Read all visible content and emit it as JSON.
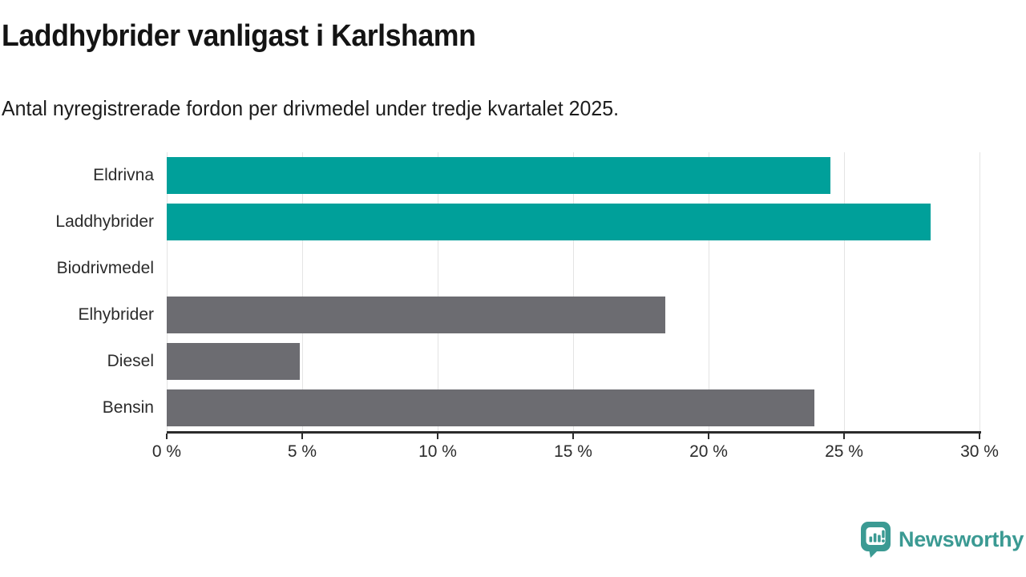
{
  "header": {
    "title": "Laddhybrider vanligast i Karlshamn",
    "subtitle": "Antal nyregistrerade fordon per drivmedel under tredje kvartalet 2025."
  },
  "colors": {
    "teal": "#00a09a",
    "gray": "#6c6c71",
    "grid": "#e4e4e4",
    "axis": "#2b2b2b",
    "logo_teal": "#3b9a93"
  },
  "chart_data": {
    "type": "bar",
    "orientation": "horizontal",
    "title": "Laddhybrider vanligast i Karlshamn",
    "subtitle": "Antal nyregistrerade fordon per drivmedel under tredje kvartalet 2025.",
    "categories": [
      "Eldrivna",
      "Laddhybrider",
      "Biodrivmedel",
      "Elhybrider",
      "Diesel",
      "Bensin"
    ],
    "values": [
      24.5,
      28.2,
      0,
      18.4,
      4.9,
      23.9
    ],
    "bar_color_keys": [
      "teal",
      "teal",
      "teal",
      "gray",
      "gray",
      "gray"
    ],
    "unit": "%",
    "xlim": [
      0,
      30
    ],
    "x_tick_step": 5,
    "x_tick_labels": [
      "0 %",
      "5 %",
      "10 %",
      "15 %",
      "20 %",
      "25 %",
      "30 %"
    ],
    "grid": true,
    "legend": false
  },
  "footer": {
    "brand": "Newsworthy"
  }
}
